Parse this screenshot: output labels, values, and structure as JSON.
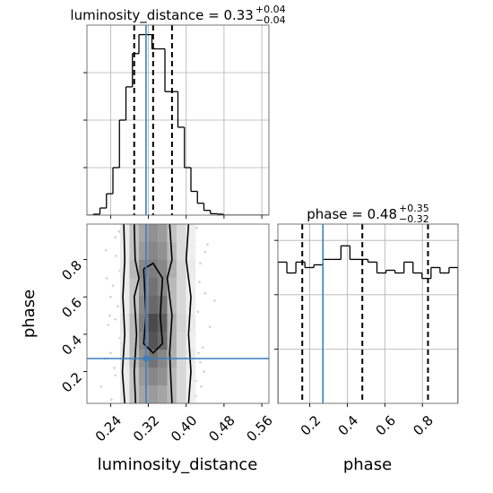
{
  "chart_data": [
    {
      "type": "histogram",
      "title": "luminosity_distance = 0.33",
      "title_upper": "+0.04",
      "title_lower": "−0.04",
      "bins": [
        0.19,
        0.20375,
        0.2175,
        0.23125,
        0.245,
        0.25875,
        0.2725,
        0.28625,
        0.3,
        0.31375,
        0.3275,
        0.34125,
        0.355,
        0.36875,
        0.3825,
        0.39625,
        0.41,
        0.42375,
        0.4375,
        0.45125,
        0.465,
        0.47875,
        0.4925,
        0.50625,
        0.52,
        0.53375,
        0.5475,
        0.56125,
        0.575
      ],
      "values": [
        0,
        0.02,
        0.15,
        0.45,
        1.0,
        2.0,
        2.7,
        3.4,
        3.8,
        3.8,
        3.5,
        3.5,
        2.6,
        2.6,
        1.85,
        1.0,
        0.5,
        0.25,
        0.1,
        0.03,
        0.02,
        0,
        0,
        0,
        0,
        0,
        0,
        0
      ],
      "color": "#000000",
      "xlim": [
        0.19,
        0.575
      ],
      "ylim": [
        0,
        4
      ],
      "xticks": [
        0.24,
        0.32,
        {
          "value": 0.4,
          "label": "0.40"
        },
        0.48,
        0.56
      ],
      "yticks": [
        1,
        2,
        3
      ],
      "xtick_labels": false,
      "ytick_labels": false,
      "grid": true,
      "quantiles": [
        0.29,
        0.33,
        0.37
      ],
      "truth": 0.315,
      "truth_color": "#3a7ebf"
    },
    {
      "type": "hist2d",
      "xlabel": "luminosity_distance",
      "ylabel": "phase",
      "xlim": [
        0.19,
        0.575
      ],
      "ylim": [
        0.03,
        0.99
      ],
      "xticks": [
        0.24,
        0.32,
        {
          "value": 0.4,
          "label": "0.40"
        },
        0.48,
        0.56
      ],
      "yticks": [
        0.2,
        0.4,
        0.6,
        0.8
      ],
      "xtick_labels": true,
      "ytick_labels": true,
      "grid": false,
      "density": {
        "xbins": [
          0.26,
          0.28,
          0.3,
          0.32,
          0.34,
          0.36,
          0.38,
          0.4,
          0.42
        ],
        "ybins": [
          0.03,
          0.126,
          0.222,
          0.318,
          0.414,
          0.51,
          0.606,
          0.702,
          0.798,
          0.894,
          0.99
        ],
        "values": [
          [
            0.1,
            0.3,
            0.45,
            0.5,
            0.45,
            0.35,
            0.2,
            0.08
          ],
          [
            0.1,
            0.3,
            0.5,
            0.6,
            0.55,
            0.35,
            0.2,
            0.08
          ],
          [
            0.12,
            0.35,
            0.55,
            0.7,
            0.6,
            0.4,
            0.2,
            0.1
          ],
          [
            0.1,
            0.35,
            0.6,
            0.85,
            0.75,
            0.4,
            0.2,
            0.08
          ],
          [
            0.12,
            0.35,
            0.65,
            0.9,
            0.8,
            0.4,
            0.22,
            0.1
          ],
          [
            0.1,
            0.3,
            0.6,
            0.75,
            0.7,
            0.35,
            0.2,
            0.08
          ],
          [
            0.1,
            0.3,
            0.55,
            0.7,
            0.6,
            0.35,
            0.2,
            0.08
          ],
          [
            0.1,
            0.35,
            0.6,
            0.65,
            0.6,
            0.4,
            0.2,
            0.1
          ],
          [
            0.1,
            0.3,
            0.5,
            0.6,
            0.55,
            0.35,
            0.18,
            0.08
          ],
          [
            0.1,
            0.3,
            0.45,
            0.55,
            0.5,
            0.3,
            0.18,
            0.08
          ]
        ]
      },
      "points": {
        "x": [
          0.22,
          0.23,
          0.235,
          0.24,
          0.245,
          0.25,
          0.25,
          0.255,
          0.26,
          0.26,
          0.27,
          0.24,
          0.228,
          0.25,
          0.258,
          0.42,
          0.425,
          0.43,
          0.435,
          0.44,
          0.45,
          0.415,
          0.42,
          0.43,
          0.44,
          0.46,
          0.418,
          0.428,
          0.438,
          0.422,
          0.232,
          0.242,
          0.252,
          0.262,
          0.412,
          0.432,
          0.445,
          0.238,
          0.426,
          0.248
        ],
        "y": [
          0.12,
          0.85,
          0.45,
          0.3,
          0.66,
          0.92,
          0.18,
          0.55,
          0.74,
          0.38,
          0.08,
          0.6,
          0.27,
          0.48,
          0.95,
          0.15,
          0.52,
          0.78,
          0.33,
          0.62,
          0.44,
          0.9,
          0.07,
          0.25,
          0.84,
          0.58,
          0.4,
          0.68,
          0.2,
          0.97,
          0.7,
          0.05,
          0.82,
          0.35,
          0.56,
          0.12,
          0.88,
          0.5,
          0.3,
          0.22
        ]
      },
      "contours": [
        {
          "x": [
            0.268,
            0.27,
            0.266,
            0.27,
            0.265,
            0.27
          ],
          "y": [
            0.99,
            0.8,
            0.6,
            0.4,
            0.2,
            0.03
          ]
        },
        {
          "x": [
            0.405,
            0.4,
            0.41,
            0.405,
            0.41,
            0.405
          ],
          "y": [
            0.99,
            0.8,
            0.6,
            0.4,
            0.2,
            0.03
          ]
        },
        {
          "x": [
            0.29,
            0.292,
            0.3,
            0.29,
            0.295,
            0.29,
            0.293
          ],
          "y": [
            0.99,
            0.8,
            0.7,
            0.6,
            0.4,
            0.2,
            0.03
          ]
        },
        {
          "x": [
            0.365,
            0.37,
            0.36,
            0.37,
            0.365,
            0.37
          ],
          "y": [
            0.99,
            0.8,
            0.7,
            0.5,
            0.3,
            0.03
          ]
        },
        {
          "x": [
            0.31,
            0.33,
            0.35,
            0.345,
            0.35,
            0.33,
            0.31,
            0.315,
            0.31
          ],
          "y": [
            0.75,
            0.78,
            0.7,
            0.5,
            0.35,
            0.3,
            0.35,
            0.5,
            0.75
          ]
        }
      ],
      "truth_x": 0.315,
      "truth_y": 0.27,
      "truth_color": "#3a7ebf"
    },
    {
      "type": "histogram",
      "title": "phase = 0.48",
      "title_upper": "+0.35",
      "title_lower": "−0.32",
      "xlabel": "phase",
      "bins": [
        0.03,
        0.078,
        0.126,
        0.174,
        0.222,
        0.27,
        0.318,
        0.366,
        0.414,
        0.462,
        0.51,
        0.558,
        0.606,
        0.654,
        0.702,
        0.75,
        0.798,
        0.846,
        0.894,
        0.942,
        0.99
      ],
      "values": [
        2.6,
        2.4,
        2.6,
        2.5,
        2.55,
        2.65,
        2.65,
        2.9,
        2.65,
        2.65,
        2.6,
        2.4,
        2.45,
        2.4,
        2.6,
        2.4,
        2.3,
        2.5,
        2.4,
        2.5
      ],
      "color": "#000000",
      "xlim": [
        0.03,
        0.99
      ],
      "ylim": [
        0,
        3.3
      ],
      "xticks": [
        0.2,
        0.4,
        0.6,
        0.8
      ],
      "yticks": [
        1,
        2,
        3
      ],
      "xtick_labels": true,
      "ytick_labels": false,
      "grid": true,
      "quantiles": [
        0.16,
        0.48,
        0.83
      ],
      "truth": 0.27,
      "truth_color": "#3a7ebf"
    }
  ]
}
